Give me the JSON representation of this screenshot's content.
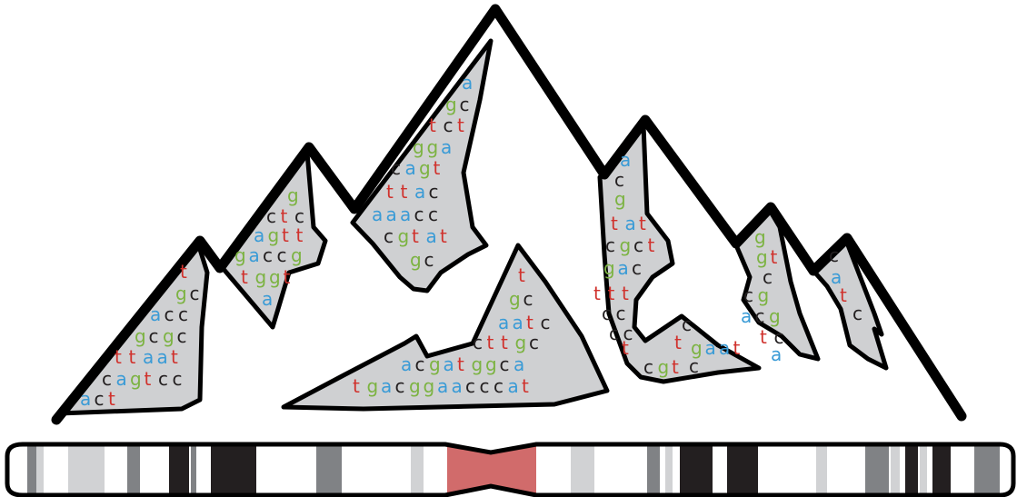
{
  "colors": {
    "a": "#3a9bd6",
    "c": "#231f20",
    "g": "#7cb342",
    "t": "#d0322d",
    "fill": "#cfd0d2",
    "outline": "#000000",
    "band_light": "#d1d2d4",
    "band_mid": "#808285",
    "band_dark": "#231f20",
    "centromere": "#d16b6b"
  },
  "icons": {
    "mountain": "mountain-range-icon",
    "chromosome": "chromosome-ideogram-icon"
  },
  "peaks": [
    {
      "name": "peak-1",
      "lines": [
        "t",
        "gc",
        "acc",
        "gcgc",
        "ttaat",
        "cagtcc",
        "act"
      ]
    },
    {
      "name": "peak-2",
      "lines": [
        "g",
        "ctc",
        "agtt",
        "gaccg",
        "tggt",
        "a"
      ]
    },
    {
      "name": "peak-3",
      "lines": [
        "a",
        "gc",
        "tct",
        "gga",
        "cagt",
        "ttac",
        "aaacc",
        "cgtat",
        "gc"
      ]
    },
    {
      "name": "peak-4",
      "lines": [
        "t",
        "gc",
        "aatc",
        "cttgc",
        "acgatggca",
        "tgacggaacccat"
      ]
    },
    {
      "name": "peak-5",
      "lines": [
        "a",
        "c",
        "g",
        "tat",
        "cgct",
        "gac",
        "ttt",
        "cc",
        "cc",
        "t",
        "cgt"
      ]
    },
    {
      "name": "peak-5b",
      "lines": [
        "c",
        "t",
        "gaat",
        "c"
      ]
    },
    {
      "name": "peak-6",
      "lines": [
        "g",
        "gt",
        "c",
        "cg",
        "acg",
        "tc",
        "a"
      ]
    },
    {
      "name": "peak-7",
      "lines": [
        "c",
        "a",
        "t",
        "c"
      ]
    }
  ]
}
